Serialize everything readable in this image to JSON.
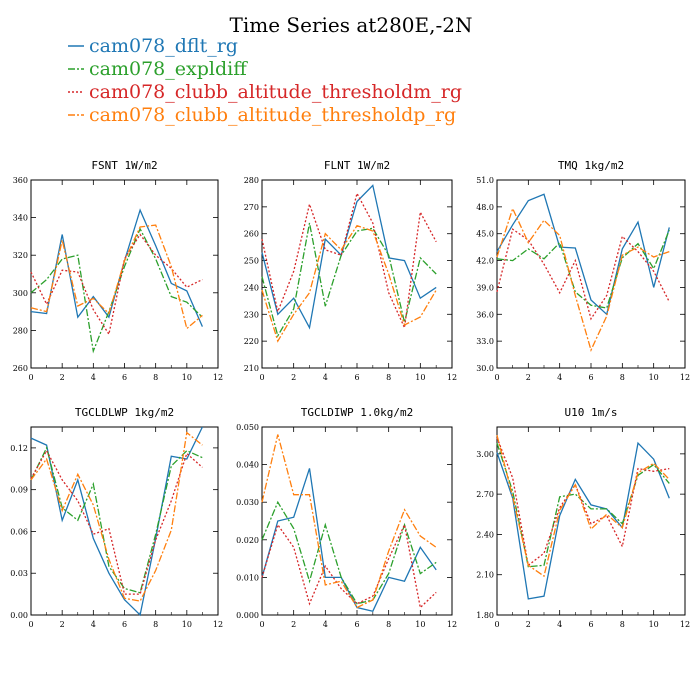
{
  "chart_data": {
    "title": "Time Series at280E,-2N",
    "legend": [
      {
        "name": "cam078_dflt_rg",
        "color": "#1f77b4",
        "dash": "solid"
      },
      {
        "name": "cam078_expldiff",
        "color": "#2ca02c",
        "dash": "dashdot"
      },
      {
        "name": "cam078_clubb_altitude_thresholdm_rg",
        "color": "#d62728",
        "dash": "dotted"
      },
      {
        "name": "cam078_clubb_altitude_thresholdp_rg",
        "color": "#ff7f0e",
        "dash": "dashdot"
      }
    ],
    "panels": [
      {
        "type": "line",
        "title": "FSNT   1W/m2",
        "x": [
          0,
          1,
          2,
          3,
          4,
          5,
          6,
          7,
          8,
          9,
          10,
          11
        ],
        "xlim": [
          0,
          12
        ],
        "xticks": [
          "0",
          "2",
          "4",
          "6",
          "8",
          "10",
          "12"
        ],
        "ylim": [
          260,
          360
        ],
        "yticks": [
          "260",
          "280",
          "300",
          "320",
          "340",
          "360"
        ],
        "series": [
          {
            "name": "cam078_dflt_rg",
            "values": [
              290,
              289,
              331,
              287,
              298,
              287,
              317,
              344,
              325,
              305,
              301,
              282
            ]
          },
          {
            "name": "cam078_expldiff",
            "values": [
              300,
              307,
              318,
              320,
              269,
              290,
              314,
              334,
              318,
              298,
              295,
              287
            ]
          },
          {
            "name": "cam078_clubb_altitude_thresholdm_rg",
            "values": [
              311,
              294,
              312,
              311,
              291,
              278,
              318,
              331,
              320,
              313,
              303,
              307
            ]
          },
          {
            "name": "cam078_clubb_altitude_thresholdp_rg",
            "values": [
              292,
              290,
              328,
              293,
              297,
              289,
              317,
              335,
              336,
              314,
              281,
              288
            ]
          }
        ]
      },
      {
        "type": "line",
        "title": "FLNT   1W/m2",
        "x": [
          0,
          1,
          2,
          3,
          4,
          5,
          6,
          7,
          8,
          9,
          10,
          11
        ],
        "xlim": [
          0,
          12
        ],
        "xticks": [
          "0",
          "2",
          "4",
          "6",
          "8",
          "10",
          "12"
        ],
        "ylim": [
          210,
          280
        ],
        "yticks": [
          "210",
          "220",
          "230",
          "240",
          "250",
          "260",
          "270",
          "280"
        ],
        "series": [
          {
            "name": "cam078_dflt_rg",
            "values": [
              253,
              230,
              236,
              225,
              258,
              252,
              272,
              278,
              251,
              250,
              236,
              240
            ]
          },
          {
            "name": "cam078_expldiff",
            "values": [
              244,
              222,
              232,
              264,
              233,
              252,
              261,
              262,
              252,
              227,
              251,
              245
            ]
          },
          {
            "name": "cam078_clubb_altitude_thresholdm_rg",
            "values": [
              258,
              231,
              246,
              271,
              254,
              252,
              275,
              264,
              238,
              225,
              268,
              257
            ]
          },
          {
            "name": "cam078_clubb_altitude_thresholdp_rg",
            "values": [
              239,
              220,
              230,
              238,
              260,
              254,
              263,
              261,
              245,
              226,
              229,
              239
            ]
          }
        ]
      },
      {
        "type": "line",
        "title": "TMQ   1kg/m2",
        "x": [
          0,
          1,
          2,
          3,
          4,
          5,
          6,
          7,
          8,
          9,
          10,
          11
        ],
        "xlim": [
          0,
          12
        ],
        "xticks": [
          "0",
          "2",
          "4",
          "6",
          "8",
          "10",
          "12"
        ],
        "ylim": [
          30.0,
          51.0
        ],
        "yticks": [
          "30.0",
          "33.0",
          "36.0",
          "39.0",
          "42.0",
          "45.0",
          "48.0",
          "51.0"
        ],
        "series": [
          {
            "name": "cam078_dflt_rg",
            "values": [
              43.0,
              46.0,
              48.7,
              49.4,
              43.5,
              43.4,
              37.6,
              36.0,
              43.3,
              46.3,
              39.0,
              45.7
            ]
          },
          {
            "name": "cam078_expldiff",
            "values": [
              42.2,
              42.0,
              43.3,
              42.2,
              44.0,
              38.5,
              37.0,
              36.7,
              42.3,
              43.9,
              41.1,
              45.4
            ]
          },
          {
            "name": "cam078_clubb_altitude_thresholdm_rg",
            "values": [
              38.5,
              45.5,
              44.3,
              41.6,
              38.4,
              42.0,
              35.5,
              38.1,
              44.7,
              43.0,
              40.8,
              37.4
            ]
          },
          {
            "name": "cam078_clubb_altitude_thresholdp_rg",
            "values": [
              42.4,
              47.8,
              44.0,
              46.5,
              44.8,
              38.1,
              32.0,
              35.8,
              42.6,
              43.5,
              42.4,
              43.0
            ]
          }
        ]
      },
      {
        "type": "line",
        "title": "TGCLDLWP   1kg/m2",
        "x": [
          0,
          1,
          2,
          3,
          4,
          5,
          6,
          7,
          8,
          9,
          10,
          11
        ],
        "xlim": [
          0,
          12
        ],
        "xticks": [
          "0",
          "2",
          "4",
          "6",
          "8",
          "10",
          "12"
        ],
        "ylim": [
          0.0,
          0.135
        ],
        "yticks": [
          "0.00",
          "0.03",
          "0.06",
          "0.09",
          "0.12"
        ],
        "series": [
          {
            "name": "cam078_dflt_rg",
            "values": [
              0.127,
              0.122,
              0.068,
              0.097,
              0.055,
              0.03,
              0.011,
              0.0,
              0.055,
              0.114,
              0.112,
              0.135
            ]
          },
          {
            "name": "cam078_expldiff",
            "values": [
              0.097,
              0.12,
              0.077,
              0.068,
              0.094,
              0.035,
              0.019,
              0.016,
              0.058,
              0.107,
              0.118,
              0.113
            ]
          },
          {
            "name": "cam078_clubb_altitude_thresholdm_rg",
            "values": [
              0.098,
              0.118,
              0.097,
              0.082,
              0.058,
              0.062,
              0.015,
              0.015,
              0.054,
              0.082,
              0.116,
              0.106
            ]
          },
          {
            "name": "cam078_clubb_altitude_thresholdp_rg",
            "values": [
              0.097,
              0.112,
              0.075,
              0.101,
              0.079,
              0.04,
              0.012,
              0.01,
              0.032,
              0.061,
              0.131,
              0.122
            ]
          }
        ]
      },
      {
        "type": "line",
        "title": "TGCLDIWP   1.0kg/m2",
        "x": [
          0,
          1,
          2,
          3,
          4,
          5,
          6,
          7,
          8,
          9,
          10,
          11
        ],
        "xlim": [
          0,
          12
        ],
        "xticks": [
          "0",
          "2",
          "4",
          "6",
          "8",
          "10",
          "12"
        ],
        "ylim": [
          0.0,
          0.05
        ],
        "yticks": [
          "0.000",
          "0.010",
          "0.020",
          "0.030",
          "0.040",
          "0.050"
        ],
        "series": [
          {
            "name": "cam078_dflt_rg",
            "values": [
              0.01,
              0.025,
              0.026,
              0.039,
              0.01,
              0.01,
              0.002,
              0.001,
              0.01,
              0.009,
              0.018,
              0.012
            ]
          },
          {
            "name": "cam078_expldiff",
            "values": [
              0.02,
              0.03,
              0.023,
              0.009,
              0.024,
              0.01,
              0.003,
              0.004,
              0.011,
              0.024,
              0.011,
              0.014
            ]
          },
          {
            "name": "cam078_clubb_altitude_thresholdm_rg",
            "values": [
              0.01,
              0.024,
              0.018,
              0.003,
              0.013,
              0.007,
              0.003,
              0.005,
              0.015,
              0.024,
              0.002,
              0.006
            ]
          },
          {
            "name": "cam078_clubb_altitude_thresholdp_rg",
            "values": [
              0.03,
              0.048,
              0.032,
              0.032,
              0.008,
              0.009,
              0.002,
              0.004,
              0.017,
              0.028,
              0.021,
              0.018
            ]
          }
        ]
      },
      {
        "type": "line",
        "title": "U10   1m/s",
        "x": [
          0,
          1,
          2,
          3,
          4,
          5,
          6,
          7,
          8,
          9,
          10,
          11
        ],
        "xlim": [
          0,
          12
        ],
        "xticks": [
          "0",
          "2",
          "4",
          "6",
          "8",
          "10",
          "12"
        ],
        "ylim": [
          1.8,
          3.2
        ],
        "yticks": [
          "1.80",
          "2.10",
          "2.40",
          "2.70",
          "3.00"
        ],
        "series": [
          {
            "name": "cam078_dflt_rg",
            "values": [
              3.01,
              2.67,
              1.92,
              1.94,
              2.54,
              2.81,
              2.62,
              2.59,
              2.45,
              3.08,
              2.96,
              2.67
            ]
          },
          {
            "name": "cam078_expldiff",
            "values": [
              3.08,
              2.72,
              2.16,
              2.17,
              2.68,
              2.7,
              2.59,
              2.59,
              2.48,
              2.84,
              2.92,
              2.78
            ]
          },
          {
            "name": "cam078_clubb_altitude_thresholdm_rg",
            "values": [
              3.12,
              2.82,
              2.17,
              2.26,
              2.6,
              2.77,
              2.48,
              2.54,
              2.31,
              2.89,
              2.87,
              2.89
            ]
          },
          {
            "name": "cam078_clubb_altitude_thresholdp_rg",
            "values": [
              3.14,
              2.68,
              2.17,
              2.09,
              2.58,
              2.77,
              2.44,
              2.55,
              2.45,
              2.86,
              2.93,
              2.81
            ]
          }
        ]
      }
    ]
  }
}
